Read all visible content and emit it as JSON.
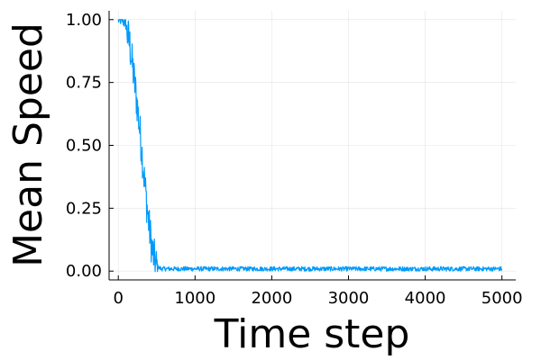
{
  "chart_data": {
    "type": "line",
    "title": "",
    "xlabel": "Time step",
    "ylabel": "Mean Speed",
    "xlim": [
      -120,
      5180
    ],
    "ylim": [
      -0.035,
      1.035
    ],
    "xticks": [
      0,
      1000,
      2000,
      3000,
      4000,
      5000
    ],
    "xtick_labels": [
      "0",
      "1000",
      "2000",
      "3000",
      "4000",
      "5000"
    ],
    "yticks": [
      0.0,
      0.25,
      0.5,
      0.75,
      1.0
    ],
    "ytick_labels": [
      "0.00",
      "0.25",
      "0.50",
      "0.75",
      "1.00"
    ],
    "grid": true,
    "legend": "none",
    "series_color": "#009AFA",
    "series": [
      {
        "x": [
          0,
          50,
          100,
          150,
          200,
          250,
          300,
          350,
          400,
          450,
          500,
          550,
          600,
          800,
          1000,
          1500,
          2000,
          2500,
          3000,
          3500,
          4000,
          4500,
          5000
        ],
        "values": [
          0.99,
          0.99,
          0.97,
          0.9,
          0.78,
          0.65,
          0.5,
          0.33,
          0.18,
          0.07,
          0.015,
          0.005,
          0.004,
          0.004,
          0.004,
          0.004,
          0.004,
          0.004,
          0.004,
          0.004,
          0.004,
          0.004,
          0.004
        ]
      }
    ]
  }
}
